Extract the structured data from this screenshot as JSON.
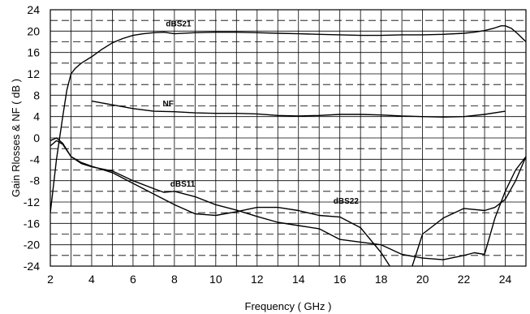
{
  "chart_data": {
    "type": "line",
    "xlabel": "Frequency ( GHz )",
    "ylabel": "Gain  Rlosses  & NF ( dB )",
    "xlim": [
      2,
      25
    ],
    "ylim": [
      -24,
      24
    ],
    "x_ticks": [
      2,
      4,
      6,
      8,
      10,
      12,
      14,
      16,
      18,
      20,
      22,
      24
    ],
    "y_ticks": [
      -24,
      -20,
      -16,
      -12,
      -8,
      -4,
      0,
      4,
      8,
      12,
      16,
      20,
      24
    ],
    "grid": {
      "vertical_solid_every_ghz": 1,
      "horizontal_solid_every_db": 2,
      "horizontal_dashed_at_db": [
        -22,
        -18,
        -14,
        -10,
        -6,
        -2,
        2,
        6,
        10,
        14,
        18,
        22
      ]
    },
    "colors": {
      "line": "#000000",
      "grid": "#000000",
      "background": "#ffffff"
    },
    "series": [
      {
        "name": "dBS21",
        "x": [
          2.0,
          2.3,
          2.6,
          2.8,
          3.0,
          3.2,
          3.5,
          4.0,
          4.5,
          5.0,
          5.5,
          6.0,
          6.5,
          7.0,
          7.5,
          8.0,
          9.0,
          10.0,
          11.0,
          12.0,
          13.0,
          14.0,
          15.0,
          16.0,
          17.0,
          18.0,
          19.0,
          20.0,
          21.0,
          22.0,
          22.5,
          23.0,
          23.5,
          23.8,
          24.0,
          24.3,
          24.6,
          25.0
        ],
        "y": [
          -14.0,
          -4.0,
          4.0,
          9.0,
          12.0,
          13.0,
          14.0,
          15.2,
          16.6,
          17.8,
          18.6,
          19.2,
          19.5,
          19.7,
          19.8,
          19.5,
          19.7,
          19.8,
          19.8,
          19.7,
          19.6,
          19.5,
          19.4,
          19.3,
          19.2,
          19.2,
          19.3,
          19.3,
          19.4,
          19.6,
          19.8,
          20.1,
          20.6,
          21.0,
          21.0,
          20.5,
          19.5,
          18.0
        ]
      },
      {
        "name": "NF",
        "x": [
          4.0,
          5.0,
          6.0,
          7.0,
          8.0,
          9.0,
          10.0,
          11.0,
          12.0,
          13.0,
          14.0,
          15.0,
          16.0,
          17.0,
          18.0,
          19.0,
          20.0,
          21.0,
          22.0,
          23.0,
          24.0
        ],
        "y": [
          6.9,
          6.2,
          5.5,
          5.0,
          4.9,
          4.7,
          4.6,
          4.6,
          4.5,
          4.2,
          4.1,
          4.2,
          4.4,
          4.4,
          4.3,
          4.1,
          4.0,
          3.9,
          4.0,
          4.4,
          5.0
        ]
      },
      {
        "name": "dBS11",
        "x": [
          2.0,
          2.3,
          2.6,
          3.0,
          3.5,
          4.0,
          5.0,
          6.0,
          7.0,
          8.0,
          9.0,
          10.0,
          11.0,
          12.0,
          13.0,
          14.0,
          15.0,
          16.0,
          17.0,
          18.0,
          18.5,
          19.0,
          19.5,
          20.0,
          21.0,
          22.0,
          23.0,
          23.5,
          24.0,
          24.5,
          25.0
        ],
        "y": [
          -1.5,
          -0.5,
          -1.2,
          -3.5,
          -4.6,
          -5.3,
          -6.5,
          -8.5,
          -10.5,
          -12.5,
          -14.2,
          -14.5,
          -13.8,
          -13.0,
          -13.0,
          -13.6,
          -14.5,
          -14.8,
          -16.8,
          -21.5,
          -24.5,
          -26.5,
          -24.0,
          -18.0,
          -15.0,
          -13.2,
          -13.6,
          -13.0,
          -11.5,
          -8.0,
          -3.5
        ]
      },
      {
        "name": "dBS22",
        "x": [
          2.0,
          2.3,
          2.6,
          3.0,
          3.5,
          4.0,
          5.0,
          6.0,
          7.0,
          7.5,
          8.0,
          9.0,
          10.0,
          11.0,
          12.0,
          13.0,
          14.0,
          15.0,
          16.0,
          17.0,
          18.0,
          19.0,
          20.0,
          21.0,
          22.0,
          22.5,
          23.0,
          23.5,
          24.0,
          24.5,
          25.0
        ],
        "y": [
          -0.5,
          0.0,
          -1.0,
          -3.5,
          -4.8,
          -5.4,
          -6.2,
          -8.0,
          -9.5,
          -10.2,
          -10.0,
          -11.0,
          -12.5,
          -13.5,
          -14.7,
          -15.8,
          -16.4,
          -17.0,
          -19.0,
          -19.5,
          -20.0,
          -21.8,
          -22.5,
          -22.8,
          -22.0,
          -21.5,
          -21.8,
          -15.0,
          -10.0,
          -6.0,
          -3.5
        ]
      }
    ],
    "series_labels": [
      {
        "text": "dBS21",
        "x": 8.2,
        "y": 20.9
      },
      {
        "text": "NF",
        "x": 7.7,
        "y": 5.9
      },
      {
        "text": "dBS11",
        "x": 8.4,
        "y": -9.1
      },
      {
        "text": "dBS22",
        "x": 16.3,
        "y": -12.3
      }
    ]
  }
}
